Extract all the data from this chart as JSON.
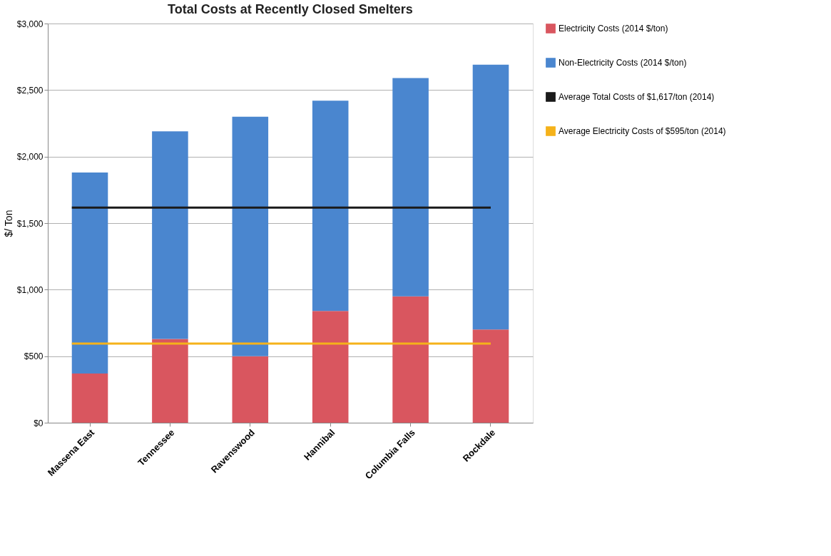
{
  "chart_data": {
    "type": "bar",
    "title": "Total Costs at Recently Closed Smelters",
    "ylabel": "$/ Ton",
    "categories": [
      "Massena East",
      "Tennessee",
      "Ravenswood",
      "Hannibal",
      "Columbia Falls",
      "Rockdale"
    ],
    "stacked": true,
    "series": [
      {
        "name": "Electricity Costs (2014 $/ton)",
        "color": "#d9565f",
        "values": [
          370,
          630,
          500,
          840,
          950,
          700
        ]
      },
      {
        "name": "Non-Electricity Costs (2014 $/ton)",
        "color": "#4a86cf",
        "values": [
          1510,
          1560,
          1800,
          1580,
          1640,
          1990
        ]
      }
    ],
    "ref_lines": [
      {
        "axis": "y",
        "value": 1617,
        "label": "Average Total Costs of $1,617/ton (2014)",
        "color": "#1a1a1a"
      },
      {
        "axis": "y",
        "value": 595,
        "label": "Average Electricity Costs of $595/ton (2014)",
        "color": "#f5b21a"
      }
    ],
    "ylim": [
      0,
      3000
    ],
    "yticks": [
      {
        "value": 0,
        "label": "$0"
      },
      {
        "value": 500,
        "label": "$500"
      },
      {
        "value": 1000,
        "label": "$1,000"
      },
      {
        "value": 1500,
        "label": "$1,500"
      },
      {
        "value": 2000,
        "label": "$2,000"
      },
      {
        "value": 2500,
        "label": "$2,500"
      },
      {
        "value": 3000,
        "label": "$3,000"
      }
    ],
    "grid": "y",
    "legend": "right"
  }
}
